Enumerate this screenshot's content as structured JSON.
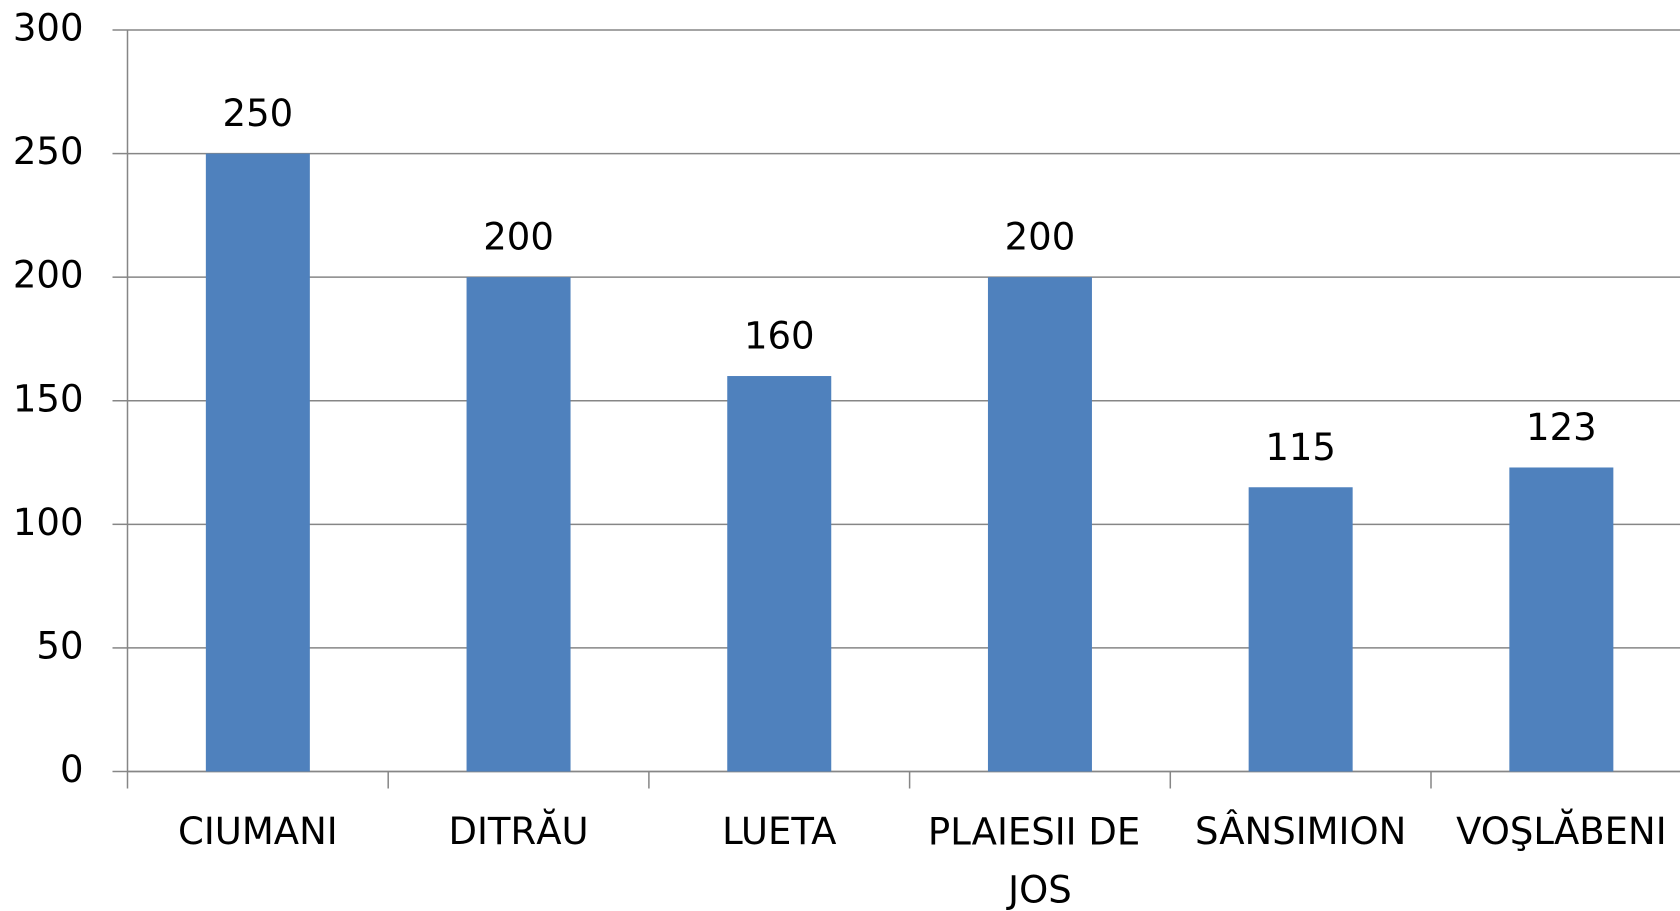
{
  "chart_data": {
    "type": "bar",
    "categories": [
      "CIUMANI",
      "DITRĂU",
      "LUETA",
      "PLAIESII DE JOS",
      "SÂNSIMION",
      "VOŞLĂBENI"
    ],
    "values": [
      250,
      200,
      160,
      200,
      115,
      123
    ],
    "color": "#4f81bd",
    "ylim": [
      0,
      300
    ],
    "yticks": [
      0,
      50,
      100,
      150,
      200,
      250,
      300
    ],
    "grid": true
  }
}
